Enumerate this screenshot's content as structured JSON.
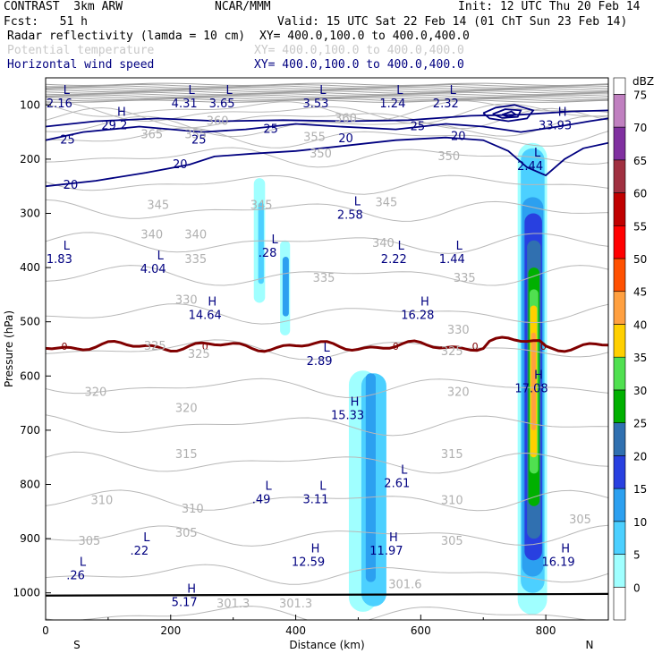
{
  "header": {
    "model": "CONTRAST  3km ARW",
    "org": "NCAR/MMM",
    "init": "Init: 12 UTC Thu 20 Feb 14",
    "fcst": "Fcst:   51 h",
    "valid": "Valid: 15 UTC Sat 22 Feb 14 (01 ChT Sun 23 Feb 14)",
    "fields": [
      {
        "name": "Radar reflectivity (lamda = 10 cm)",
        "xy": "XY= 400.0,100.0 to 400.0,400.0",
        "color": "#000000"
      },
      {
        "name": "Potential temperature",
        "xy": "XY= 400.0,100.0 to 400.0,400.0",
        "color": "#c8c8c8"
      },
      {
        "name": "Horizontal wind speed",
        "xy": "XY= 400.0,100.0 to 400.0,400.0",
        "color": "#000080"
      }
    ]
  },
  "chart_data": {
    "type": "cross-section",
    "xlabel": "Distance (km)",
    "ylabel": "Pressure (hPa)",
    "xlim": [
      0,
      900
    ],
    "ylim": [
      1050,
      50
    ],
    "xticks": [
      0,
      200,
      400,
      600,
      800
    ],
    "yticks": [
      100,
      200,
      300,
      400,
      500,
      600,
      700,
      800,
      900,
      1000
    ],
    "x_end_labels": {
      "left": "S",
      "right": "N"
    },
    "colorbar": {
      "unit": "dBZ",
      "levels": [
        0,
        5,
        10,
        15,
        20,
        25,
        30,
        35,
        40,
        45,
        50,
        55,
        60,
        65,
        70,
        75
      ],
      "colors": [
        "#ffffff",
        "#a0ffff",
        "#4cd0ff",
        "#2ca0f0",
        "#2840e0",
        "#3070b0",
        "#00b000",
        "#50e050",
        "#ffd000",
        "#ffa040",
        "#ff5000",
        "#ff0000",
        "#c00000",
        "#a03040",
        "#8030a0",
        "#c080c0"
      ]
    },
    "reflectivity_cells": [
      {
        "x": 345,
        "p": 370,
        "dbz": 10
      },
      {
        "x": 385,
        "p": 430,
        "dbz": 15
      },
      {
        "x": 520,
        "p": 820,
        "dbz": 10
      },
      {
        "x": 780,
        "p": 600,
        "dbz": 45
      }
    ],
    "freezing_level_label": "0",
    "theta_labels": [
      {
        "x": 275,
        "p": 130,
        "text": "360"
      },
      {
        "x": 480,
        "p": 125,
        "text": "360"
      },
      {
        "x": 170,
        "p": 155,
        "text": "365"
      },
      {
        "x": 240,
        "p": 155,
        "text": "355"
      },
      {
        "x": 430,
        "p": 160,
        "text": "355"
      },
      {
        "x": 440,
        "p": 190,
        "text": "350"
      },
      {
        "x": 645,
        "p": 195,
        "text": "350"
      },
      {
        "x": 345,
        "p": 285,
        "text": "345"
      },
      {
        "x": 180,
        "p": 285,
        "text": "345"
      },
      {
        "x": 545,
        "p": 280,
        "text": "345"
      },
      {
        "x": 170,
        "p": 340,
        "text": "340"
      },
      {
        "x": 240,
        "p": 340,
        "text": "340"
      },
      {
        "x": 540,
        "p": 355,
        "text": "340"
      },
      {
        "x": 240,
        "p": 385,
        "text": "335"
      },
      {
        "x": 445,
        "p": 420,
        "text": "335"
      },
      {
        "x": 670,
        "p": 420,
        "text": "335"
      },
      {
        "x": 225,
        "p": 460,
        "text": "330"
      },
      {
        "x": 660,
        "p": 515,
        "text": "330"
      },
      {
        "x": 175,
        "p": 545,
        "text": "325"
      },
      {
        "x": 245,
        "p": 560,
        "text": "325"
      },
      {
        "x": 650,
        "p": 555,
        "text": "325"
      },
      {
        "x": 80,
        "p": 630,
        "text": "320"
      },
      {
        "x": 225,
        "p": 660,
        "text": "320"
      },
      {
        "x": 660,
        "p": 630,
        "text": "320"
      },
      {
        "x": 225,
        "p": 745,
        "text": "315"
      },
      {
        "x": 650,
        "p": 745,
        "text": "315"
      },
      {
        "x": 90,
        "p": 830,
        "text": "310"
      },
      {
        "x": 235,
        "p": 845,
        "text": "310"
      },
      {
        "x": 650,
        "p": 830,
        "text": "310"
      },
      {
        "x": 70,
        "p": 905,
        "text": "305"
      },
      {
        "x": 225,
        "p": 890,
        "text": "305"
      },
      {
        "x": 650,
        "p": 905,
        "text": "305"
      },
      {
        "x": 855,
        "p": 865,
        "text": "305"
      },
      {
        "x": 575,
        "p": 985,
        "text": "301.6"
      },
      {
        "x": 300,
        "p": 1020,
        "text": "301.3"
      },
      {
        "x": 400,
        "p": 1020,
        "text": "301.3"
      }
    ],
    "wind_labels": [
      {
        "x": 35,
        "p": 165,
        "text": "25"
      },
      {
        "x": 245,
        "p": 165,
        "text": "25"
      },
      {
        "x": 215,
        "p": 210,
        "text": "20"
      },
      {
        "x": 40,
        "p": 248,
        "text": "20"
      },
      {
        "x": 480,
        "p": 162,
        "text": "20"
      },
      {
        "x": 660,
        "p": 158,
        "text": "20"
      },
      {
        "x": 360,
        "p": 145,
        "text": "25"
      },
      {
        "x": 595,
        "p": 140,
        "text": "25"
      }
    ],
    "extrema": [
      {
        "x": 22,
        "p": 80,
        "type": "L",
        "value": "2.16"
      },
      {
        "x": 110,
        "p": 120,
        "type": "H",
        "value": "29.2"
      },
      {
        "x": 222,
        "p": 80,
        "type": "L",
        "value": "4.31"
      },
      {
        "x": 282,
        "p": 80,
        "type": "L",
        "value": "3.65"
      },
      {
        "x": 432,
        "p": 80,
        "type": "L",
        "value": "3.53"
      },
      {
        "x": 555,
        "p": 80,
        "type": "L",
        "value": "1.24"
      },
      {
        "x": 640,
        "p": 80,
        "type": "L",
        "value": "2.32"
      },
      {
        "x": 815,
        "p": 120,
        "type": "H",
        "value": "33.93"
      },
      {
        "x": 775,
        "p": 195,
        "type": "L",
        "value": "2.44"
      },
      {
        "x": 487,
        "p": 285,
        "type": "L",
        "value": "2.58"
      },
      {
        "x": 22,
        "p": 367,
        "type": "L",
        "value": "1.83"
      },
      {
        "x": 355,
        "p": 355,
        "type": "L",
        "value": ".28"
      },
      {
        "x": 172,
        "p": 385,
        "type": "L",
        "value": "4.04"
      },
      {
        "x": 557,
        "p": 367,
        "type": "L",
        "value": "2.22"
      },
      {
        "x": 650,
        "p": 367,
        "type": "L",
        "value": "1.44"
      },
      {
        "x": 255,
        "p": 470,
        "type": "H",
        "value": "14.64"
      },
      {
        "x": 595,
        "p": 470,
        "type": "H",
        "value": "16.28"
      },
      {
        "x": 438,
        "p": 555,
        "type": "L",
        "value": "2.89"
      },
      {
        "x": 777,
        "p": 605,
        "type": "H",
        "value": "17.08"
      },
      {
        "x": 483,
        "p": 655,
        "type": "H",
        "value": "15.33"
      },
      {
        "x": 562,
        "p": 780,
        "type": "L",
        "value": "2.61"
      },
      {
        "x": 345,
        "p": 810,
        "type": "L",
        "value": ".49"
      },
      {
        "x": 432,
        "p": 810,
        "type": "L",
        "value": "3.11"
      },
      {
        "x": 150,
        "p": 905,
        "type": "L",
        "value": ".22"
      },
      {
        "x": 545,
        "p": 905,
        "type": "H",
        "value": "11.97"
      },
      {
        "x": 420,
        "p": 925,
        "type": "H",
        "value": "12.59"
      },
      {
        "x": 820,
        "p": 925,
        "type": "H",
        "value": "16.19"
      },
      {
        "x": 48,
        "p": 950,
        "type": "L",
        "value": ".26"
      },
      {
        "x": 222,
        "p": 1000,
        "type": "H",
        "value": "5.17"
      }
    ]
  }
}
